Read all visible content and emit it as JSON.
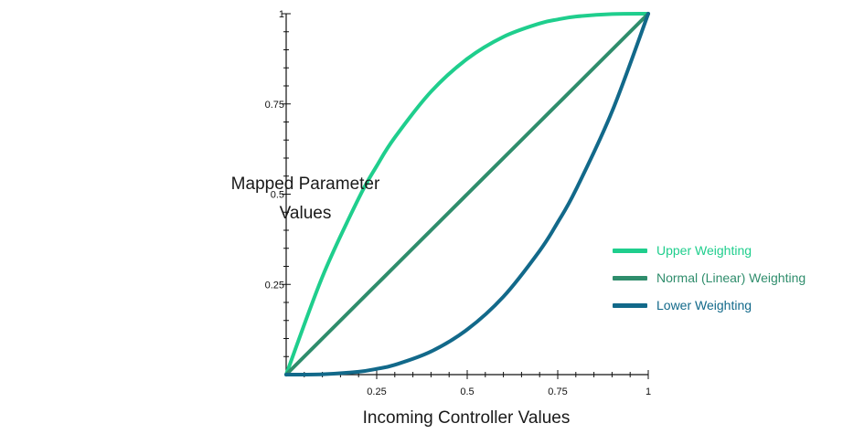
{
  "chart_data": {
    "type": "line",
    "title": "",
    "xlabel": "Incoming Controller Values",
    "ylabel": "Mapped Parameter Values",
    "ylabel_lines": [
      "Mapped Parameter",
      "Values"
    ],
    "xlim": [
      0,
      1
    ],
    "ylim": [
      0,
      1
    ],
    "x_ticks": [
      "0.25",
      "0.5",
      "0.75",
      "1"
    ],
    "y_ticks": [
      "0.25",
      "0.5",
      "0.75",
      "1"
    ],
    "grid": false,
    "legend_position": "right",
    "x": [
      0,
      0.1,
      0.2,
      0.25,
      0.3,
      0.4,
      0.5,
      0.6,
      0.7,
      0.75,
      0.8,
      0.9,
      1
    ],
    "series": [
      {
        "name": "Upper Weighting",
        "color": "#1fce8d",
        "values": [
          0,
          0.271,
          0.488,
          0.578,
          0.657,
          0.784,
          0.875,
          0.936,
          0.973,
          0.984,
          0.992,
          0.999,
          1
        ]
      },
      {
        "name": "Normal (Linear) Weighting",
        "color": "#2f8d6c",
        "values": [
          0,
          0.1,
          0.2,
          0.25,
          0.3,
          0.4,
          0.5,
          0.6,
          0.7,
          0.75,
          0.8,
          0.9,
          1
        ]
      },
      {
        "name": "Lower Weighting",
        "color": "#12698a",
        "values": [
          0,
          0.001,
          0.008,
          0.016,
          0.027,
          0.064,
          0.125,
          0.216,
          0.343,
          0.422,
          0.512,
          0.729,
          1
        ]
      }
    ]
  }
}
